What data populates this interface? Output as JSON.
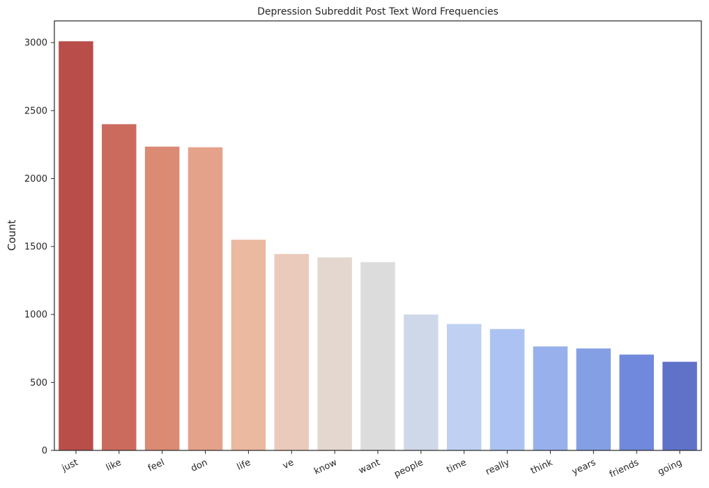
{
  "chart_data": {
    "type": "bar",
    "title": "Depression Subreddit Post Text Word Frequencies",
    "xlabel": "",
    "ylabel": "Count",
    "ylim": [
      0,
      3160
    ],
    "yticks": [
      0,
      500,
      1000,
      1500,
      2000,
      2500,
      3000
    ],
    "grid": false,
    "legend": "none",
    "categories": [
      "just",
      "like",
      "feel",
      "don",
      "life",
      "ve",
      "know",
      "want",
      "people",
      "time",
      "really",
      "think",
      "years",
      "friends",
      "going"
    ],
    "values": [
      3010,
      2400,
      2235,
      2230,
      1550,
      1445,
      1420,
      1385,
      1000,
      930,
      893,
      765,
      750,
      705,
      652
    ],
    "colors": [
      "#b84d4a",
      "#cb6b5e",
      "#db8a74",
      "#e4a28a",
      "#ebb8a0",
      "#eacbbb",
      "#e4d7cf",
      "#dcdcdc",
      "#cfd8e8",
      "#bfd0f2",
      "#acc2f2",
      "#98b0ec",
      "#859fe4",
      "#7089dc",
      "#5f72c8"
    ]
  }
}
